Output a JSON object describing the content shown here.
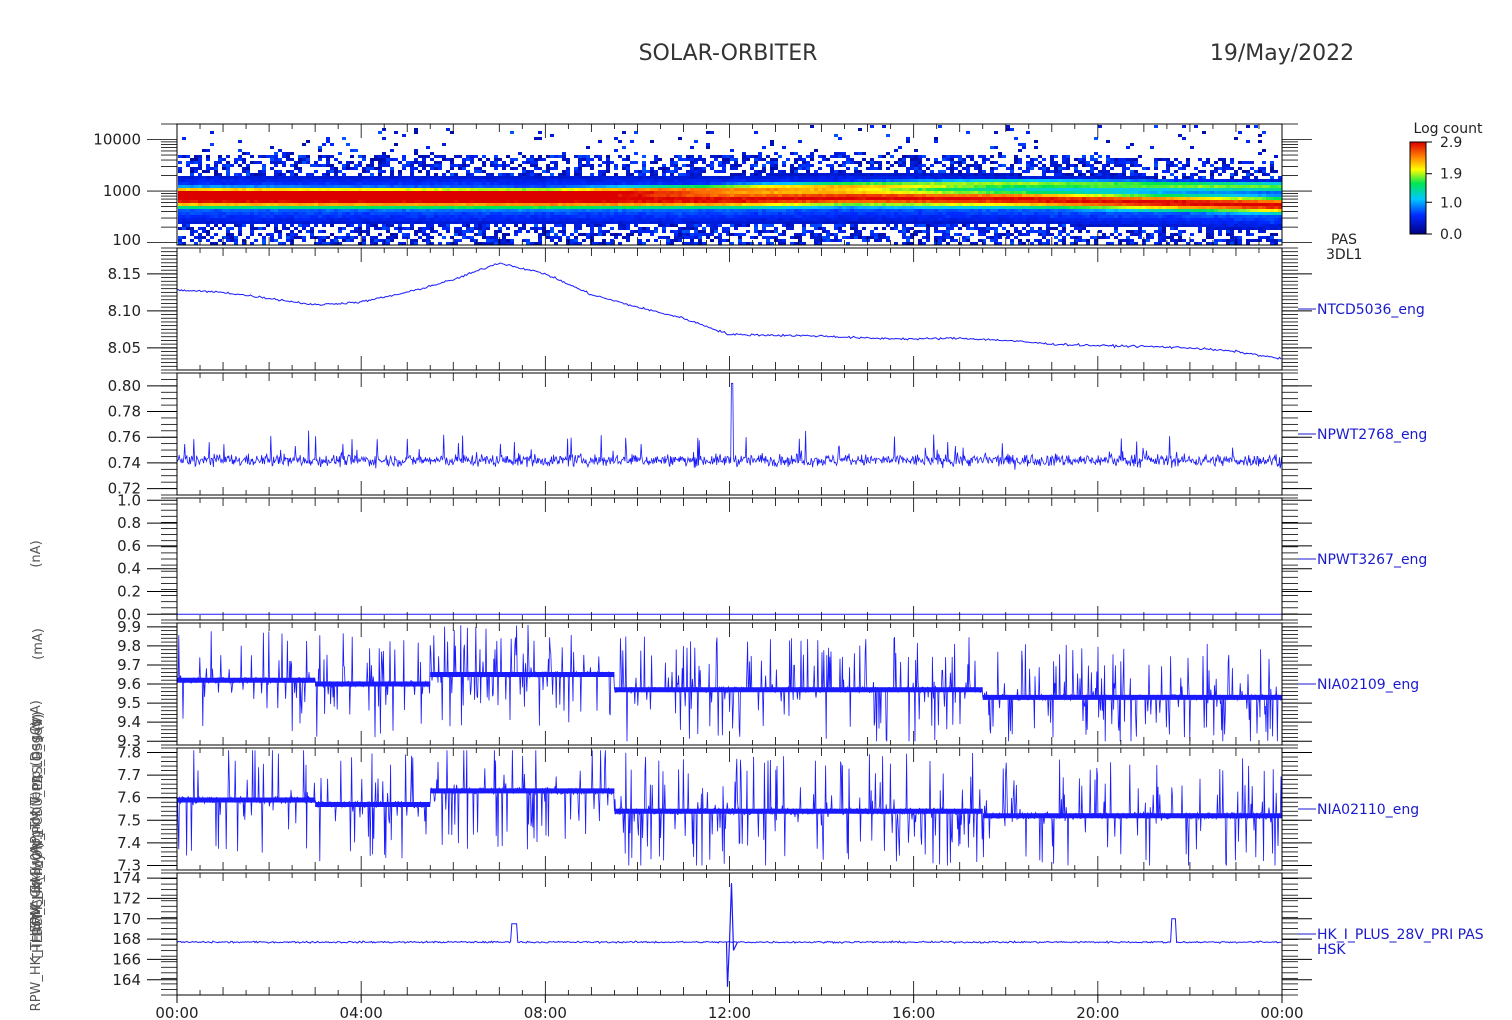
{
  "header": {
    "mission": "SOLAR-ORBITER",
    "date": "19/May/2022"
  },
  "colors": {
    "trace": "#1a1aff",
    "axis": "#000000",
    "label": "#1a1acc"
  },
  "x_ticks": [
    "00:00",
    "04:00",
    "08:00",
    "12:00",
    "16:00",
    "20:00",
    "00:00"
  ],
  "y_labels_overlapping": [
    "(nA)",
    "(mA)",
    "(mA)",
    "PAS_E_ (eV)",
    "Approx Temp (DegC)",
    "DCM_HK_IMON_PCDU_LB_LOSS (V)",
    "SWA_EAS_0AP_TM(V)",
    "THERM_CH4(ncy (f.)",
    "RPW_HK_THERM_CH4(v)"
  ],
  "colorbar": {
    "title": "Log count",
    "ticks": [
      "2.9",
      "1.9",
      "1.0",
      "0.0"
    ]
  },
  "pas_label": [
    "PAS",
    "3DL1"
  ],
  "chart_data": [
    {
      "type": "heatmap",
      "name": "PAS 3DL1",
      "y_scale": "log",
      "yticks": [
        "10000",
        "1000",
        "100"
      ],
      "x_range_hours": [
        0,
        24
      ],
      "description_peak_energy_eV": [
        {
          "hour": 0,
          "peak": 720,
          "secondary": 1050
        },
        {
          "hour": 8,
          "peak": 700,
          "secondary": 1000
        },
        {
          "hour": 12,
          "peak": 720,
          "secondary": 1200
        },
        {
          "hour": 14.5,
          "peak": 780,
          "secondary": 1350
        },
        {
          "hour": 18,
          "peak": 740,
          "secondary": 1500
        },
        {
          "hour": 24,
          "peak": 560,
          "secondary": 1300
        }
      ],
      "colorbar_range": [
        0.0,
        2.9
      ]
    },
    {
      "type": "line",
      "label": "NTCD5036_eng",
      "ylim": [
        8.02,
        8.185
      ],
      "yticks": [
        "8.15",
        "8.10",
        "8.05"
      ],
      "x": [
        0,
        1,
        2,
        3,
        4,
        5,
        6,
        7,
        8,
        9,
        10,
        11,
        12,
        13,
        14,
        15,
        16,
        17,
        18,
        19,
        20,
        21,
        22,
        23,
        24
      ],
      "y": [
        8.128,
        8.125,
        8.117,
        8.108,
        8.112,
        8.125,
        8.142,
        8.165,
        8.15,
        8.122,
        8.105,
        8.09,
        8.068,
        8.067,
        8.066,
        8.063,
        8.062,
        8.063,
        8.06,
        8.055,
        8.053,
        8.052,
        8.05,
        8.045,
        8.035
      ]
    },
    {
      "type": "line",
      "label": "NPWT2768_eng",
      "ylim": [
        0.715,
        0.81
      ],
      "yticks": [
        "0.80",
        "0.78",
        "0.76",
        "0.74",
        "0.72"
      ],
      "baseline": 0.742,
      "spike": {
        "hour": 12.05,
        "value": 0.802
      }
    },
    {
      "type": "line",
      "label": "NPWT3267_eng",
      "ylim": [
        -0.05,
        1.02
      ],
      "yticks": [
        "1.0",
        "0.8",
        "0.6",
        "0.4",
        "0.2",
        "0.0"
      ],
      "constant": 0.0
    },
    {
      "type": "line",
      "label": "NIA02109_eng",
      "ylim": [
        9.28,
        9.92
      ],
      "yticks": [
        "9.9",
        "9.8",
        "9.7",
        "9.6",
        "9.5",
        "9.4",
        "9.3"
      ],
      "levels": [
        {
          "start": 0,
          "end": 3,
          "level": 9.62
        },
        {
          "start": 3,
          "end": 5.5,
          "level": 9.6
        },
        {
          "start": 5.5,
          "end": 9.5,
          "level": 9.65
        },
        {
          "start": 9.5,
          "end": 17.5,
          "level": 9.57
        },
        {
          "start": 17.5,
          "end": 24,
          "level": 9.53
        }
      ]
    },
    {
      "type": "line",
      "label": "NIA02110_eng",
      "ylim": [
        7.28,
        7.82
      ],
      "yticks": [
        "7.8",
        "7.7",
        "7.6",
        "7.5",
        "7.4",
        "7.3"
      ],
      "levels": [
        {
          "start": 0,
          "end": 3,
          "level": 7.59
        },
        {
          "start": 3,
          "end": 5.5,
          "level": 7.57
        },
        {
          "start": 5.5,
          "end": 9.5,
          "level": 7.63
        },
        {
          "start": 9.5,
          "end": 17.5,
          "level": 7.54
        },
        {
          "start": 17.5,
          "end": 24,
          "level": 7.52
        }
      ]
    },
    {
      "type": "line",
      "label": "HK_I_PLUS_28V_PRI PAS HSK",
      "ylim": [
        162.5,
        174.5
      ],
      "yticks": [
        "174",
        "172",
        "170",
        "168",
        "166",
        "164"
      ],
      "baseline": 167.7,
      "events": [
        {
          "hour": 7.25,
          "width": 0.15,
          "value": 169.5
        },
        {
          "hour": 12.0,
          "low": 163.3,
          "high": 173.5
        },
        {
          "hour": 21.6,
          "width": 0.1,
          "value": 170.0
        }
      ]
    }
  ]
}
